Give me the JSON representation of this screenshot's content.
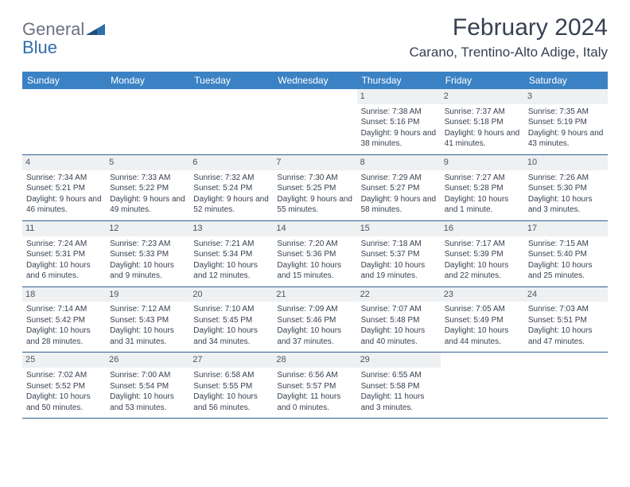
{
  "brand": {
    "textGray": "General",
    "textBlue": "Blue"
  },
  "title": "February 2024",
  "subtitle": "Carano, Trentino-Alto Adige, Italy",
  "colors": {
    "headerBar": "#3b82c4",
    "headerText": "#ffffff",
    "dayNumBg": "#eef0f2",
    "rowBorder": "#2f5f8f",
    "bodyText": "#374151",
    "logoGray": "#6b7280",
    "logoBlue": "#2f6fab"
  },
  "weekdays": [
    "Sunday",
    "Monday",
    "Tuesday",
    "Wednesday",
    "Thursday",
    "Friday",
    "Saturday"
  ],
  "weeks": [
    [
      {
        "blank": true
      },
      {
        "blank": true
      },
      {
        "blank": true
      },
      {
        "blank": true
      },
      {
        "n": "1",
        "sr": "Sunrise: 7:38 AM",
        "ss": "Sunset: 5:16 PM",
        "dl": "Daylight: 9 hours and 38 minutes."
      },
      {
        "n": "2",
        "sr": "Sunrise: 7:37 AM",
        "ss": "Sunset: 5:18 PM",
        "dl": "Daylight: 9 hours and 41 minutes."
      },
      {
        "n": "3",
        "sr": "Sunrise: 7:35 AM",
        "ss": "Sunset: 5:19 PM",
        "dl": "Daylight: 9 hours and 43 minutes."
      }
    ],
    [
      {
        "n": "4",
        "sr": "Sunrise: 7:34 AM",
        "ss": "Sunset: 5:21 PM",
        "dl": "Daylight: 9 hours and 46 minutes."
      },
      {
        "n": "5",
        "sr": "Sunrise: 7:33 AM",
        "ss": "Sunset: 5:22 PM",
        "dl": "Daylight: 9 hours and 49 minutes."
      },
      {
        "n": "6",
        "sr": "Sunrise: 7:32 AM",
        "ss": "Sunset: 5:24 PM",
        "dl": "Daylight: 9 hours and 52 minutes."
      },
      {
        "n": "7",
        "sr": "Sunrise: 7:30 AM",
        "ss": "Sunset: 5:25 PM",
        "dl": "Daylight: 9 hours and 55 minutes."
      },
      {
        "n": "8",
        "sr": "Sunrise: 7:29 AM",
        "ss": "Sunset: 5:27 PM",
        "dl": "Daylight: 9 hours and 58 minutes."
      },
      {
        "n": "9",
        "sr": "Sunrise: 7:27 AM",
        "ss": "Sunset: 5:28 PM",
        "dl": "Daylight: 10 hours and 1 minute."
      },
      {
        "n": "10",
        "sr": "Sunrise: 7:26 AM",
        "ss": "Sunset: 5:30 PM",
        "dl": "Daylight: 10 hours and 3 minutes."
      }
    ],
    [
      {
        "n": "11",
        "sr": "Sunrise: 7:24 AM",
        "ss": "Sunset: 5:31 PM",
        "dl": "Daylight: 10 hours and 6 minutes."
      },
      {
        "n": "12",
        "sr": "Sunrise: 7:23 AM",
        "ss": "Sunset: 5:33 PM",
        "dl": "Daylight: 10 hours and 9 minutes."
      },
      {
        "n": "13",
        "sr": "Sunrise: 7:21 AM",
        "ss": "Sunset: 5:34 PM",
        "dl": "Daylight: 10 hours and 12 minutes."
      },
      {
        "n": "14",
        "sr": "Sunrise: 7:20 AM",
        "ss": "Sunset: 5:36 PM",
        "dl": "Daylight: 10 hours and 15 minutes."
      },
      {
        "n": "15",
        "sr": "Sunrise: 7:18 AM",
        "ss": "Sunset: 5:37 PM",
        "dl": "Daylight: 10 hours and 19 minutes."
      },
      {
        "n": "16",
        "sr": "Sunrise: 7:17 AM",
        "ss": "Sunset: 5:39 PM",
        "dl": "Daylight: 10 hours and 22 minutes."
      },
      {
        "n": "17",
        "sr": "Sunrise: 7:15 AM",
        "ss": "Sunset: 5:40 PM",
        "dl": "Daylight: 10 hours and 25 minutes."
      }
    ],
    [
      {
        "n": "18",
        "sr": "Sunrise: 7:14 AM",
        "ss": "Sunset: 5:42 PM",
        "dl": "Daylight: 10 hours and 28 minutes."
      },
      {
        "n": "19",
        "sr": "Sunrise: 7:12 AM",
        "ss": "Sunset: 5:43 PM",
        "dl": "Daylight: 10 hours and 31 minutes."
      },
      {
        "n": "20",
        "sr": "Sunrise: 7:10 AM",
        "ss": "Sunset: 5:45 PM",
        "dl": "Daylight: 10 hours and 34 minutes."
      },
      {
        "n": "21",
        "sr": "Sunrise: 7:09 AM",
        "ss": "Sunset: 5:46 PM",
        "dl": "Daylight: 10 hours and 37 minutes."
      },
      {
        "n": "22",
        "sr": "Sunrise: 7:07 AM",
        "ss": "Sunset: 5:48 PM",
        "dl": "Daylight: 10 hours and 40 minutes."
      },
      {
        "n": "23",
        "sr": "Sunrise: 7:05 AM",
        "ss": "Sunset: 5:49 PM",
        "dl": "Daylight: 10 hours and 44 minutes."
      },
      {
        "n": "24",
        "sr": "Sunrise: 7:03 AM",
        "ss": "Sunset: 5:51 PM",
        "dl": "Daylight: 10 hours and 47 minutes."
      }
    ],
    [
      {
        "n": "25",
        "sr": "Sunrise: 7:02 AM",
        "ss": "Sunset: 5:52 PM",
        "dl": "Daylight: 10 hours and 50 minutes."
      },
      {
        "n": "26",
        "sr": "Sunrise: 7:00 AM",
        "ss": "Sunset: 5:54 PM",
        "dl": "Daylight: 10 hours and 53 minutes."
      },
      {
        "n": "27",
        "sr": "Sunrise: 6:58 AM",
        "ss": "Sunset: 5:55 PM",
        "dl": "Daylight: 10 hours and 56 minutes."
      },
      {
        "n": "28",
        "sr": "Sunrise: 6:56 AM",
        "ss": "Sunset: 5:57 PM",
        "dl": "Daylight: 11 hours and 0 minutes."
      },
      {
        "n": "29",
        "sr": "Sunrise: 6:55 AM",
        "ss": "Sunset: 5:58 PM",
        "dl": "Daylight: 11 hours and 3 minutes."
      },
      {
        "blank": true
      },
      {
        "blank": true
      }
    ]
  ]
}
